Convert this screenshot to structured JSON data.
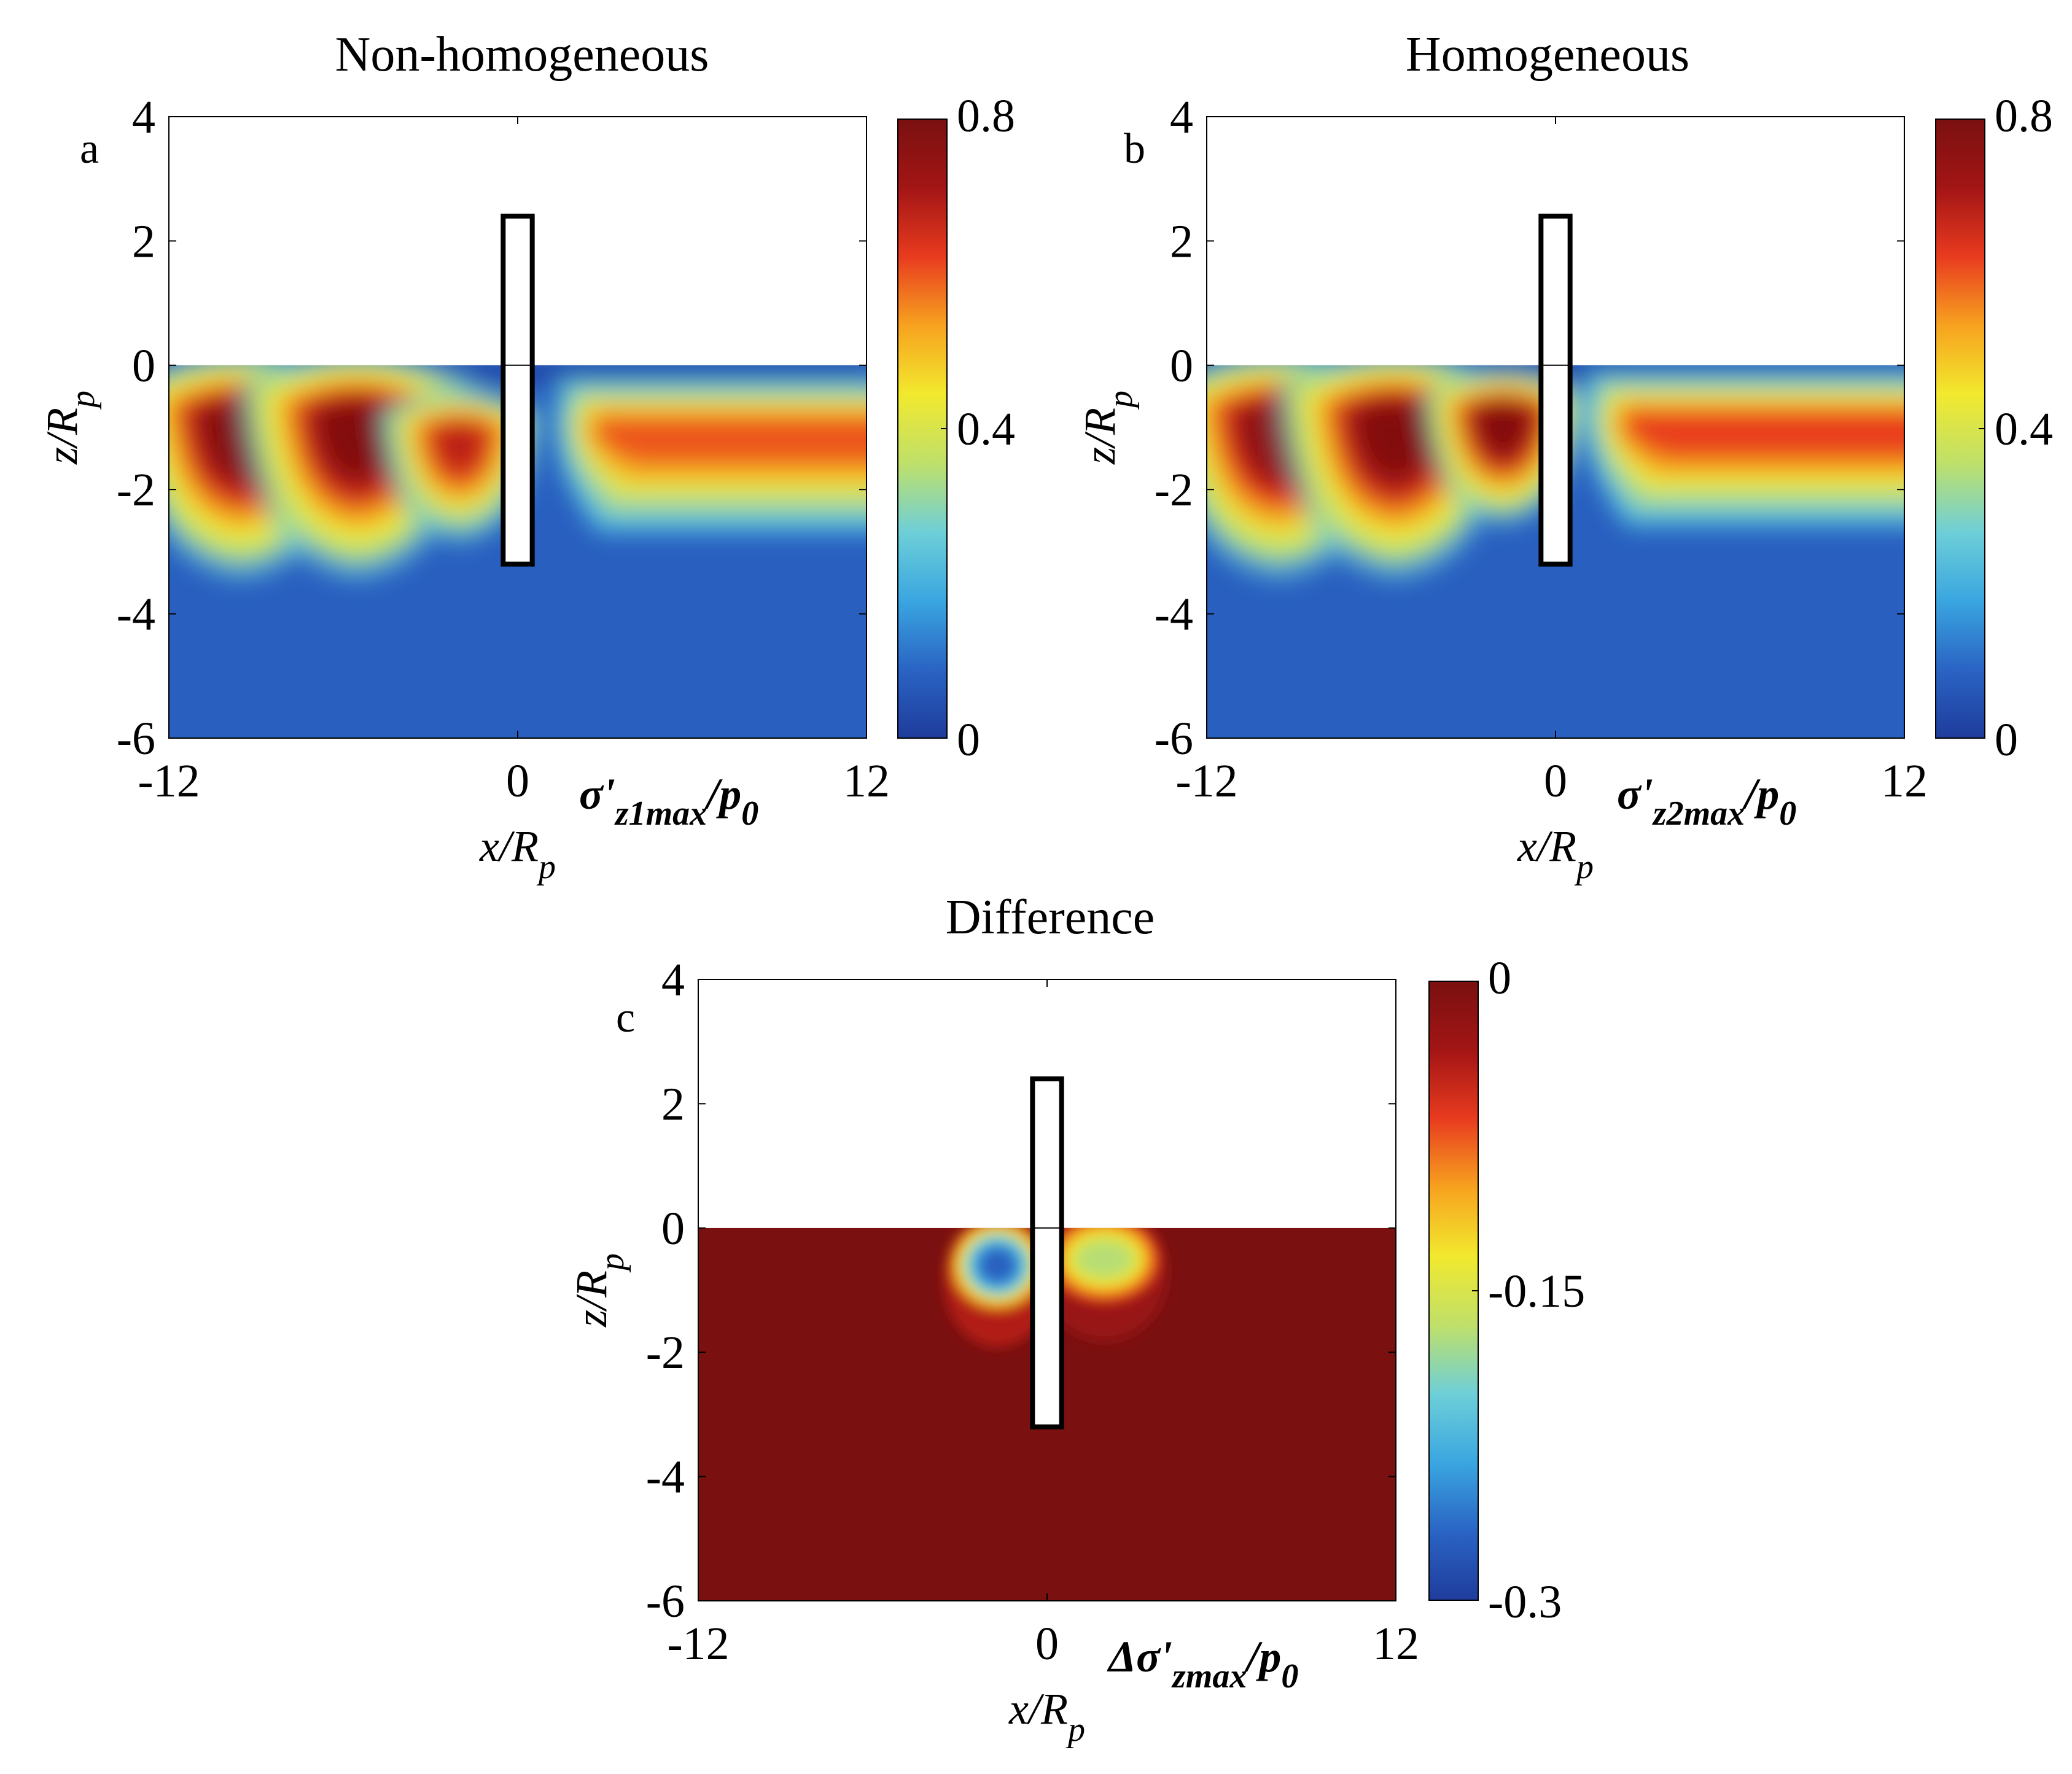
{
  "figure": {
    "panels": [
      {
        "id": "a",
        "title": "Non-homogeneous",
        "panel_label": "a",
        "xlabel": "x/R",
        "xlabel_sub": "p",
        "ylabel": "z/R",
        "ylabel_sub": "p",
        "x_ticks": [
          "-12",
          "0",
          "12"
        ],
        "y_ticks": [
          "4",
          "2",
          "0",
          "-2",
          "-4",
          "-6"
        ],
        "colorbar_label": "σ'",
        "colorbar_label_sub": "z1max",
        "colorbar_label_tail": "/p",
        "colorbar_label_tail_sub": "0",
        "colorbar_ticks": [
          "0.8",
          "0.4",
          "0"
        ],
        "colormap": [
          "#1f3c9c",
          "#2a64c4",
          "#3aa6e0",
          "#6ecfd8",
          "#bfe06a",
          "#f2e92e",
          "#f7a21f",
          "#e83b1f",
          "#a31515",
          "#7a1010"
        ]
      },
      {
        "id": "b",
        "title": "Homogeneous",
        "panel_label": "b",
        "xlabel": "x/R",
        "xlabel_sub": "p",
        "ylabel": "z/R",
        "ylabel_sub": "p",
        "x_ticks": [
          "-12",
          "0",
          "12"
        ],
        "y_ticks": [
          "4",
          "2",
          "0",
          "-2",
          "-4",
          "-6"
        ],
        "colorbar_label": "σ'",
        "colorbar_label_sub": "z2max",
        "colorbar_label_tail": "/p",
        "colorbar_label_tail_sub": "0",
        "colorbar_ticks": [
          "0.8",
          "0.4",
          "0"
        ],
        "colormap": [
          "#1f3c9c",
          "#2a64c4",
          "#3aa6e0",
          "#6ecfd8",
          "#bfe06a",
          "#f2e92e",
          "#f7a21f",
          "#e83b1f",
          "#a31515",
          "#7a1010"
        ]
      },
      {
        "id": "c",
        "title": "Difference",
        "panel_label": "c",
        "xlabel": "x/R",
        "xlabel_sub": "p",
        "ylabel": "z/R",
        "ylabel_sub": "p",
        "x_ticks": [
          "-12",
          "0",
          "12"
        ],
        "y_ticks": [
          "4",
          "2",
          "0",
          "-2",
          "-4",
          "-6"
        ],
        "colorbar_label": "Δσ'",
        "colorbar_label_sub": "zmax",
        "colorbar_label_tail": "/p",
        "colorbar_label_tail_sub": "0",
        "colorbar_ticks": [
          "0",
          "-0.15",
          "-0.3"
        ],
        "colormap": [
          "#1f3c9c",
          "#2a64c4",
          "#3aa6e0",
          "#6ecfd8",
          "#bfe06a",
          "#f2e92e",
          "#f7a21f",
          "#e83b1f",
          "#a31515",
          "#7a1010"
        ]
      }
    ]
  },
  "chart_data": [
    {
      "type": "heatmap",
      "title": "Non-homogeneous",
      "xlabel": "x/Rp",
      "ylabel": "z/Rp",
      "colorbar_label": "σ'z1max/p0",
      "xlim": [
        -12,
        12
      ],
      "ylim": [
        -6,
        4
      ],
      "clim": [
        0,
        0.8
      ],
      "ground_surface_z": 0,
      "pile": {
        "x_range": [
          -0.5,
          0.5
        ],
        "z_range": [
          -3.2,
          2.4
        ]
      },
      "peaks": [
        {
          "x": -9.5,
          "z": -1.0,
          "value": 0.78
        },
        {
          "x": -5.5,
          "z": -1.0,
          "value": 0.78
        },
        {
          "x": -2.0,
          "z": -1.2,
          "value": 0.68
        }
      ],
      "far_field_band": {
        "x_from": 1.5,
        "x_to": 12,
        "z_center": -1.1,
        "value": 0.6
      },
      "background_value": 0.08
    },
    {
      "type": "heatmap",
      "title": "Homogeneous",
      "xlabel": "x/Rp",
      "ylabel": "z/Rp",
      "colorbar_label": "σ'z2max/p0",
      "xlim": [
        -12,
        12
      ],
      "ylim": [
        -6,
        4
      ],
      "clim": [
        0,
        0.8
      ],
      "ground_surface_z": 0,
      "pile": {
        "x_range": [
          -0.5,
          0.5
        ],
        "z_range": [
          -3.2,
          2.4
        ]
      },
      "peaks": [
        {
          "x": -9.5,
          "z": -1.0,
          "value": 0.76
        },
        {
          "x": -5.5,
          "z": -1.0,
          "value": 0.78
        },
        {
          "x": -1.8,
          "z": -0.9,
          "value": 0.78
        }
      ],
      "far_field_band": {
        "x_from": 1.2,
        "x_to": 12,
        "z_center": -1.0,
        "value": 0.62
      },
      "background_value": 0.08
    },
    {
      "type": "heatmap",
      "title": "Difference",
      "xlabel": "x/Rp",
      "ylabel": "z/Rp",
      "colorbar_label": "Δσ'zmax/p0",
      "xlim": [
        -12,
        12
      ],
      "ylim": [
        -6,
        4
      ],
      "clim": [
        -0.3,
        0
      ],
      "ground_surface_z": 0,
      "pile": {
        "x_range": [
          -0.5,
          0.5
        ],
        "z_range": [
          -3.2,
          2.4
        ]
      },
      "peaks": [
        {
          "x": -1.7,
          "z": -0.6,
          "value": -0.27
        },
        {
          "x": 1.8,
          "z": -0.5,
          "value": -0.17
        }
      ],
      "background_value": 0.0
    }
  ]
}
